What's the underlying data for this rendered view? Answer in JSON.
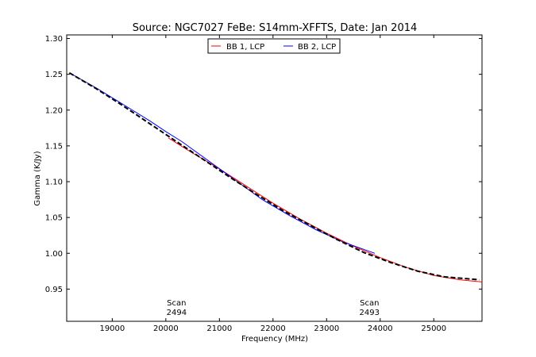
{
  "chart_data": {
    "type": "line",
    "title": "Source: NGC7027 FeBe: S14mm-XFFTS, Date: Jan 2014",
    "xlabel": "Frequency (MHz)",
    "ylabel": "Gamma (K/Jy)",
    "xlim": [
      18150,
      25900
    ],
    "ylim": [
      0.905,
      1.305
    ],
    "xticks": [
      19000,
      20000,
      21000,
      22000,
      23000,
      24000,
      25000
    ],
    "yticks": [
      0.95,
      1.0,
      1.05,
      1.1,
      1.15,
      1.2,
      1.25,
      1.3
    ],
    "ytick_labels": [
      "0.95",
      "1.00",
      "1.05",
      "1.10",
      "1.15",
      "1.20",
      "1.25",
      "1.30"
    ],
    "grid": false,
    "legend_position": "top-center",
    "series": [
      {
        "name": "BB 1, LCP",
        "color": "#ff0000",
        "x": [
          20050,
          20500,
          21000,
          21500,
          22000,
          22500,
          23000,
          23500,
          24000,
          24500,
          25000,
          25500,
          25900
        ],
        "y": [
          1.161,
          1.14,
          1.118,
          1.094,
          1.07,
          1.048,
          1.028,
          1.01,
          0.994,
          0.98,
          0.969,
          0.963,
          0.96
        ]
      },
      {
        "name": "BB 2, LCP",
        "color": "#0000ff",
        "x": [
          18200,
          18700,
          19200,
          19700,
          20000,
          20300,
          21800,
          22300,
          22800,
          23300,
          23900
        ],
        "y": [
          1.252,
          1.231,
          1.208,
          1.185,
          1.17,
          1.156,
          1.075,
          1.053,
          1.033,
          1.016,
          1.0
        ]
      },
      {
        "name": "",
        "color": "#000000",
        "dash": true,
        "x": [
          18200,
          18700,
          19200,
          19700,
          20200,
          20700,
          21200,
          21700,
          22200,
          22700,
          23200,
          23700,
          24200,
          24700,
          25200,
          25850
        ],
        "y": [
          1.252,
          1.23,
          1.206,
          1.181,
          1.156,
          1.131,
          1.106,
          1.082,
          1.059,
          1.039,
          1.019,
          1.001,
          0.987,
          0.975,
          0.967,
          0.963
        ]
      }
    ],
    "annotations": [
      {
        "text_line1": "Scan",
        "text_line2": "2494",
        "x": 20200
      },
      {
        "text_line1": "Scan",
        "text_line2": "2493",
        "x": 23800
      }
    ]
  }
}
